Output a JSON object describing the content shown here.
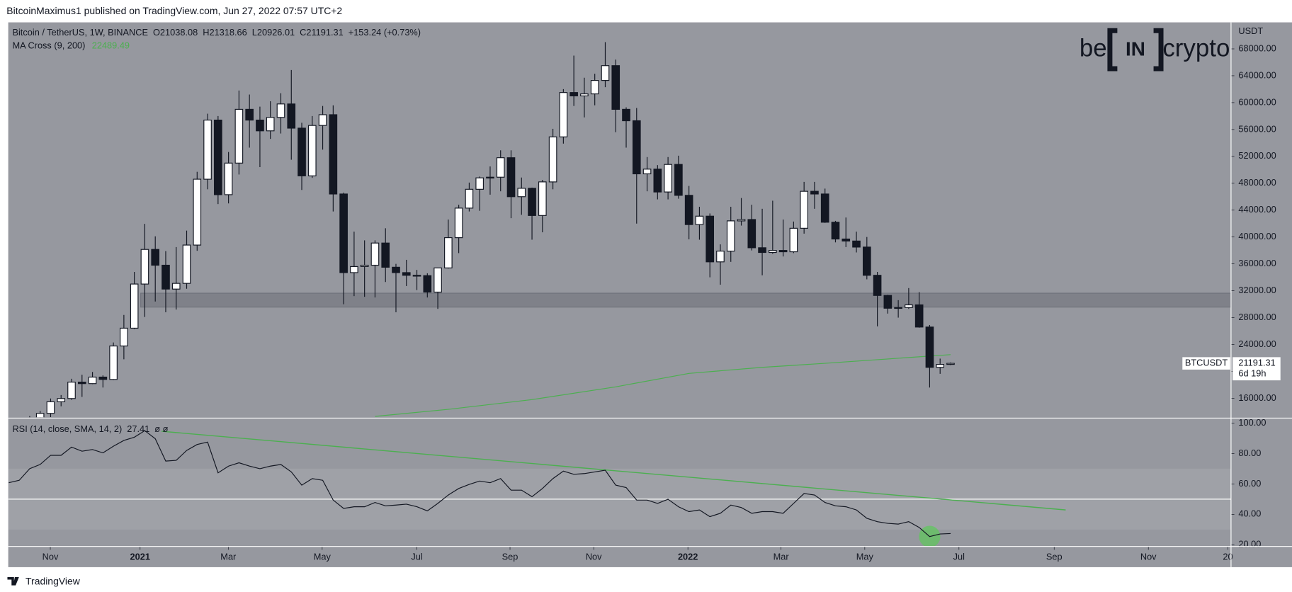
{
  "header": {
    "text": "BitcoinMaximus1 published on TradingView.com, Jun 27, 2022 07:57 UTC+2"
  },
  "chart_data": {
    "type": "candlestick",
    "title": "Bitcoin / TetherUS, 1W, BINANCE",
    "ohlc_prefixes": [
      "O",
      "H",
      "L",
      "C"
    ],
    "change": "+153.24 (+0.73%)",
    "up_color": "#ffffff",
    "down_color": "#131722",
    "x": [
      0,
      1,
      2,
      3,
      4,
      5,
      6,
      7,
      8,
      9,
      10,
      11,
      12,
      13,
      14,
      15,
      16,
      17,
      18,
      19,
      20,
      21,
      22,
      23,
      24,
      25,
      26,
      27,
      28,
      29,
      30,
      31,
      32,
      33,
      34,
      35,
      36,
      37,
      38,
      39,
      40,
      41,
      42,
      43,
      44,
      45,
      46,
      47,
      48,
      49,
      50,
      51,
      52,
      53,
      54,
      55,
      56,
      57,
      58,
      59,
      60,
      61,
      62,
      63,
      64,
      65,
      66,
      67,
      68,
      69,
      70,
      71,
      72,
      73,
      74,
      75,
      76,
      77,
      78,
      79,
      80,
      81,
      82,
      83,
      84,
      85,
      86,
      87,
      88
    ],
    "open": [
      11500,
      13030,
      13750,
      15480,
      15960,
      18400,
      18180,
      19150,
      18800,
      23780,
      26430,
      33000,
      38150,
      35800,
      32250,
      33100,
      38800,
      48600,
      57400,
      46300,
      51000,
      59000,
      57400,
      55800,
      57800,
      59800,
      56200,
      49100,
      56600,
      58200,
      46400,
      34700,
      35600,
      35800,
      39100,
      35500,
      34700,
      34300,
      34250,
      31800,
      35400,
      39900,
      44300,
      47100,
      48800,
      48900,
      51800,
      46000,
      47250,
      43200,
      48200,
      54900,
      61500,
      61000,
      61300,
      63300,
      65500,
      59000,
      57300,
      49400,
      50100,
      46700,
      50800,
      46200,
      41850,
      43100,
      36300,
      37900,
      42400,
      42600,
      38400,
      37700,
      38000,
      37800,
      41300,
      46800,
      46400,
      42200,
      39700,
      39400,
      38500,
      34300,
      31300,
      29400,
      29500,
      29900,
      26600,
      20600,
      21038.08
    ],
    "high": [
      13350,
      14100,
      15960,
      16480,
      18900,
      19490,
      19920,
      19400,
      24300,
      28400,
      34800,
      41950,
      40100,
      37900,
      38500,
      40950,
      49700,
      58350,
      58000,
      52650,
      61800,
      61200,
      59400,
      60200,
      61400,
      64850,
      57000,
      58000,
      59500,
      59600,
      46600,
      40800,
      39500,
      39500,
      41300,
      36000,
      36600,
      35100,
      34600,
      35400,
      42600,
      44800,
      48100,
      49000,
      50500,
      52900,
      52900,
      48850,
      47350,
      48500,
      56100,
      62000,
      67000,
      63700,
      64300,
      69000,
      66400,
      59300,
      59200,
      51900,
      50700,
      51900,
      52100,
      47600,
      44500,
      43500,
      38900,
      44500,
      45800,
      44800,
      44200,
      45400,
      42600,
      42300,
      48200,
      48200,
      47200,
      42400,
      42900,
      40800,
      40000,
      34800,
      31400,
      30600,
      32400,
      31800,
      26900,
      21900,
      21318.66
    ],
    "low": [
      11400,
      12900,
      13200,
      14800,
      15770,
      16200,
      18100,
      17600,
      18700,
      21800,
      26300,
      28100,
      30400,
      28800,
      29200,
      32300,
      37950,
      47100,
      44900,
      45000,
      49300,
      53300,
      50400,
      54600,
      55400,
      51500,
      47000,
      48800,
      53000,
      43800,
      30000,
      31200,
      31100,
      31000,
      33300,
      28800,
      32700,
      32100,
      31000,
      29300,
      35300,
      37600,
      43800,
      43900,
      46300,
      46800,
      42800,
      43300,
      39600,
      40700,
      47100,
      53900,
      59500,
      57800,
      59600,
      62300,
      55600,
      53300,
      42000,
      46800,
      45600,
      45600,
      45700,
      39650,
      39600,
      34000,
      32900,
      36300,
      41700,
      38000,
      34300,
      37500,
      37100,
      37600,
      40500,
      44200,
      42100,
      39200,
      38500,
      37700,
      33700,
      26700,
      28600,
      28000,
      29300,
      26500,
      17600,
      19640,
      20926.01
    ],
    "close": [
      13030,
      13750,
      15480,
      15960,
      18400,
      18180,
      19150,
      18800,
      23780,
      26430,
      33000,
      38150,
      35800,
      32250,
      33100,
      38800,
      48600,
      57400,
      46300,
      51000,
      59000,
      57400,
      55800,
      57800,
      59800,
      56200,
      49100,
      56600,
      58200,
      46400,
      34700,
      35600,
      35800,
      39100,
      35500,
      34700,
      34300,
      34250,
      31800,
      35400,
      39900,
      44300,
      47100,
      48800,
      48900,
      51800,
      46000,
      47250,
      43200,
      48200,
      54900,
      61500,
      61000,
      61300,
      63300,
      65500,
      59000,
      57300,
      49400,
      50100,
      46700,
      50800,
      46200,
      41850,
      43100,
      36300,
      37900,
      42400,
      42600,
      38400,
      37700,
      38000,
      37800,
      41300,
      46800,
      46400,
      42200,
      39700,
      39400,
      38500,
      34300,
      31300,
      29400,
      29500,
      29900,
      26600,
      20600,
      21038,
      21191.31
    ],
    "y_unit": "USDT",
    "ylim": [
      13166,
      71945
    ],
    "yticks": [
      {
        "value": 16000,
        "label": "16000.00"
      },
      {
        "value": 20000,
        "label": "20000.00"
      },
      {
        "value": 24000,
        "label": "24000.00"
      },
      {
        "value": 28000,
        "label": "28000.00"
      },
      {
        "value": 32000,
        "label": "32000.00"
      },
      {
        "value": 36000,
        "label": "36000.00"
      },
      {
        "value": 40000,
        "label": "40000.00"
      },
      {
        "value": 44000,
        "label": "44000.00"
      },
      {
        "value": 48000,
        "label": "48000.00"
      },
      {
        "value": 52000,
        "label": "52000.00"
      },
      {
        "value": 56000,
        "label": "56000.00"
      },
      {
        "value": 60000,
        "label": "60000.00"
      },
      {
        "value": 64000,
        "label": "64000.00"
      },
      {
        "value": 68000,
        "label": "68000.00"
      }
    ],
    "xlim": [
      -2.05,
      114.8
    ],
    "xticks": [
      {
        "value": 1.97,
        "label": "Nov"
      },
      {
        "value": 10.55,
        "label": "2021"
      },
      {
        "value": 18.98,
        "label": "Mar"
      },
      {
        "value": 27.95,
        "label": "May"
      },
      {
        "value": 37.0,
        "label": "Jul"
      },
      {
        "value": 45.9,
        "label": "Sep"
      },
      {
        "value": 53.9,
        "label": "Nov"
      },
      {
        "value": 62.9,
        "label": "2022"
      },
      {
        "value": 71.8,
        "label": "Mar"
      },
      {
        "value": 79.8,
        "label": "May"
      },
      {
        "value": 88.8,
        "label": "Jul"
      },
      {
        "value": 97.9,
        "label": "Sep"
      },
      {
        "value": 106.9,
        "label": "Nov"
      },
      {
        "value": 114.5,
        "label": "20"
      }
    ],
    "ma": {
      "name": "MA Cross (9, 200)",
      "color": "#4caf50",
      "x": [
        33,
        40,
        48,
        56,
        63,
        70,
        76,
        82,
        88
      ],
      "values": [
        13300,
        14350,
        15800,
        17700,
        19700,
        20600,
        21200,
        21850,
        22489.49
      ]
    },
    "zone": {
      "low": 29560,
      "high": 31650,
      "x": [
        10.6,
        114.8
      ]
    },
    "price_tag": {
      "symbol": "BTCUSDT",
      "countdown": "6d 19h"
    },
    "rsi": {
      "name": "RSI (14, close, SMA, 14, 2)",
      "extra": "ø ø",
      "color": "#131722",
      "x": [
        -2,
        -1,
        0,
        1,
        2,
        3,
        4,
        5,
        6,
        7,
        8,
        9,
        10,
        11,
        12,
        13,
        14,
        15,
        16,
        17,
        18,
        19,
        20,
        21,
        22,
        23,
        24,
        25,
        26,
        27,
        28,
        29,
        30,
        31,
        32,
        33,
        34,
        35,
        36,
        37,
        38,
        39,
        40,
        41,
        42,
        43,
        44,
        45,
        46,
        47,
        48,
        49,
        50,
        51,
        52,
        53,
        54,
        55,
        56,
        57,
        58,
        59,
        60,
        61,
        62,
        63,
        64,
        65,
        66,
        67,
        68,
        69,
        70,
        71,
        72,
        73,
        74,
        75,
        76,
        77,
        78,
        79,
        80,
        81,
        82,
        83,
        84,
        85,
        86,
        87,
        88
      ],
      "values": [
        60.8,
        62.4,
        70,
        72.8,
        78.8,
        78.8,
        84.2,
        81.5,
        82.6,
        80.4,
        84.8,
        88.6,
        90.7,
        95,
        89.7,
        75,
        75.5,
        82,
        85.9,
        87.5,
        67.3,
        71.7,
        73.9,
        71.7,
        70,
        71.7,
        72.8,
        67.9,
        59.2,
        63.5,
        62.4,
        49.4,
        43.9,
        45,
        45,
        47.8,
        45.6,
        46.1,
        46.7,
        45,
        42.3,
        47.2,
        52.7,
        57,
        59.7,
        61.9,
        60.8,
        63.5,
        55.9,
        55.9,
        51.6,
        57,
        63.5,
        68.4,
        66.3,
        66.8,
        67.9,
        69,
        59.2,
        57.6,
        49.4,
        49.4,
        47.2,
        49.9,
        45,
        41.8,
        42.9,
        38.5,
        40.7,
        46.1,
        44.5,
        40.7,
        41.8,
        41.8,
        40.7,
        47.2,
        53.7,
        52.7,
        47.8,
        45.6,
        45,
        42.9,
        37.4,
        35.2,
        34.1,
        33.6,
        35.2,
        31.4,
        25.4,
        27.1,
        27.41
      ],
      "ylim": [
        18.9,
        102.7
      ],
      "yticks": [
        {
          "value": 20,
          "label": "20.00"
        },
        {
          "value": 40,
          "label": "40.00"
        },
        {
          "value": 60,
          "label": "60.00"
        },
        {
          "value": 80,
          "label": "80.00"
        },
        {
          "value": 100,
          "label": "100.00"
        }
      ],
      "band": [
        30,
        70
      ],
      "mid": 50,
      "trend": {
        "color": "#4caf50",
        "x": [
          12.6,
          99
        ],
        "values": [
          94.6,
          42.9
        ]
      },
      "highlight_color": "#5cc95a"
    }
  },
  "logo": {
    "left": "be",
    "middle": "IN",
    "right": "crypto"
  },
  "footer": {
    "text": "TradingView"
  }
}
